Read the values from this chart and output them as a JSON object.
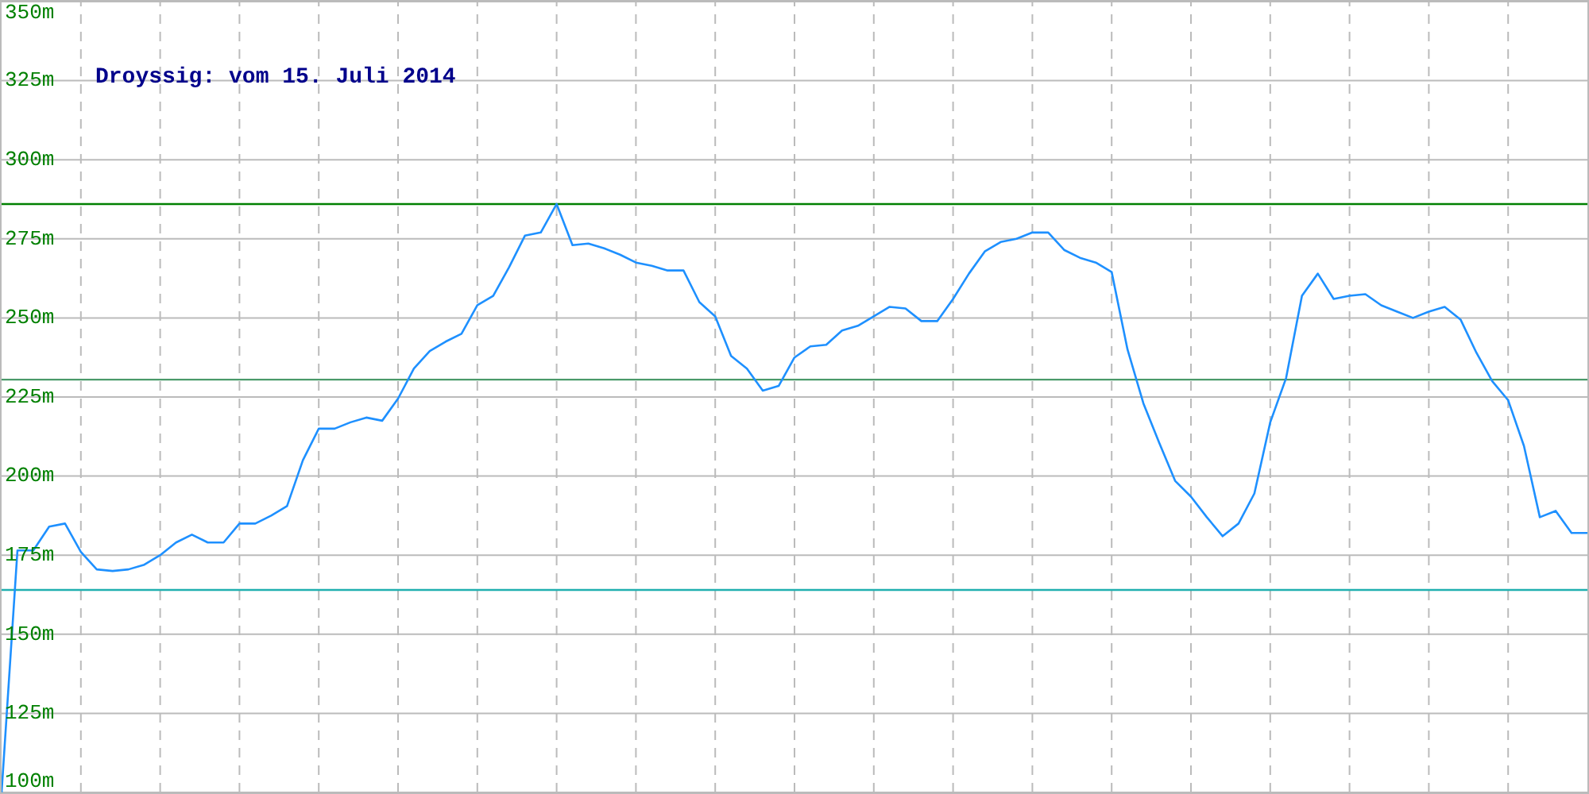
{
  "chart_data": {
    "type": "line",
    "title": "Droyssig: vom 15. Juli 2014",
    "categories": [
      null,
      null,
      null,
      null,
      null,
      null,
      null,
      null,
      null,
      null,
      null,
      null,
      null,
      null,
      null,
      null,
      null,
      null,
      null,
      null,
      null,
      null,
      null,
      null,
      null,
      null,
      null,
      null,
      null,
      null,
      null,
      null,
      null,
      null,
      null,
      null,
      null,
      null,
      null,
      null,
      null,
      null,
      null,
      null,
      null,
      null,
      null,
      null,
      null,
      null,
      null,
      null,
      null,
      null,
      null,
      null,
      null,
      null,
      null,
      null,
      null,
      null,
      null,
      null,
      null,
      null,
      null,
      null,
      null,
      null,
      null,
      null,
      null,
      null,
      null,
      null,
      null,
      null,
      null,
      null,
      null,
      null,
      null,
      null,
      null,
      null,
      null,
      null,
      null,
      null,
      null,
      null,
      null,
      null,
      null,
      null,
      null,
      null,
      null,
      null,
      null
    ],
    "ylim": [
      100,
      350
    ],
    "yticks": [
      {
        "value": 100,
        "label": "100m"
      },
      {
        "value": 125,
        "label": "125m"
      },
      {
        "value": 150,
        "label": "150m"
      },
      {
        "value": 175,
        "label": "175m"
      },
      {
        "value": 200,
        "label": "200m"
      },
      {
        "value": 225,
        "label": "225m"
      },
      {
        "value": 250,
        "label": "250m"
      },
      {
        "value": 275,
        "label": "275m"
      },
      {
        "value": 300,
        "label": "300m"
      },
      {
        "value": 325,
        "label": "325m"
      },
      {
        "value": 350,
        "label": "350m"
      }
    ],
    "grid": true,
    "marker": "none",
    "line_style": "solid",
    "ref_lines": [
      {
        "axis": "y",
        "value": 286,
        "color": "#008000"
      },
      {
        "axis": "y",
        "value": 230.5,
        "color": "#4a9a6a"
      },
      {
        "axis": "y",
        "value": 164,
        "color": "#20b0b0"
      }
    ],
    "series": [
      {
        "color": "#1e90ff",
        "values": [
          100,
          176.5,
          176.5,
          184,
          185,
          176,
          170.5,
          170,
          170.5,
          172,
          175,
          179,
          181.5,
          179,
          179,
          185,
          185,
          187.5,
          190.5,
          205,
          215,
          215,
          217,
          218.5,
          217.5,
          224.5,
          234,
          239.5,
          242.5,
          245,
          254,
          257,
          266,
          276,
          277,
          286,
          273,
          273.5,
          272,
          270,
          267.5,
          266.5,
          265,
          265,
          255,
          250.5,
          238,
          234,
          227,
          228.5,
          237.5,
          241,
          241.5,
          246,
          247.5,
          250.5,
          253.5,
          253,
          249,
          249,
          256,
          264,
          271,
          274,
          275,
          277,
          277,
          271.5,
          269,
          267.5,
          264.5,
          240,
          223,
          210.5,
          198.5,
          193.5,
          187,
          181,
          185,
          194.5,
          217,
          231,
          257,
          264,
          256,
          257,
          257.5,
          254,
          252,
          250,
          252,
          253.5,
          249.5,
          239,
          230,
          224,
          209.5,
          187,
          189,
          182,
          182
        ]
      }
    ]
  }
}
